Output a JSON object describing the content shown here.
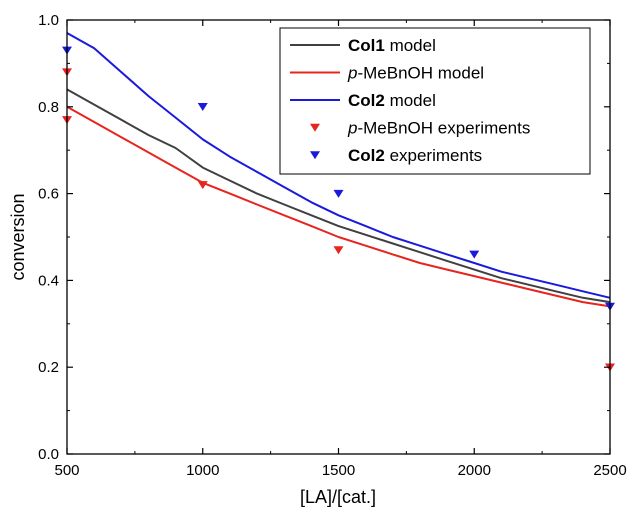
{
  "chart_data": {
    "type": "line",
    "xlabel": "[LA]/[cat.]",
    "ylabel": "conversion",
    "xlim": [
      500,
      2500
    ],
    "ylim": [
      0.0,
      1.0
    ],
    "xticks": [
      500,
      1000,
      1500,
      2000,
      2500
    ],
    "yticks": [
      "0.0",
      "0.2",
      "0.4",
      "0.6",
      "0.8",
      "1.0"
    ],
    "grid": false,
    "legend_position": "top-right",
    "series": [
      {
        "name_bold": "Col1",
        "name_italic": "",
        "name_rest": " model",
        "kind": "line",
        "color": "#404040",
        "x": [
          500,
          600,
          700,
          800,
          900,
          1000,
          1100,
          1200,
          1300,
          1400,
          1500,
          1600,
          1700,
          1800,
          1900,
          2000,
          2100,
          2200,
          2300,
          2400,
          2500
        ],
        "y": [
          0.84,
          0.805,
          0.77,
          0.735,
          0.705,
          0.66,
          0.63,
          0.6,
          0.575,
          0.55,
          0.525,
          0.505,
          0.485,
          0.465,
          0.445,
          0.425,
          0.405,
          0.39,
          0.375,
          0.36,
          0.35
        ]
      },
      {
        "name_bold": "",
        "name_italic": "p",
        "name_rest": "-MeBnOH model",
        "kind": "line",
        "color": "#e8241e",
        "x": [
          500,
          600,
          700,
          800,
          900,
          1000,
          1100,
          1200,
          1300,
          1400,
          1500,
          1600,
          1700,
          1800,
          1900,
          2000,
          2100,
          2200,
          2300,
          2400,
          2500
        ],
        "y": [
          0.8,
          0.765,
          0.73,
          0.695,
          0.66,
          0.625,
          0.6,
          0.575,
          0.55,
          0.525,
          0.5,
          0.48,
          0.46,
          0.44,
          0.425,
          0.41,
          0.395,
          0.38,
          0.365,
          0.35,
          0.34
        ]
      },
      {
        "name_bold": "Col2",
        "name_italic": "",
        "name_rest": " model",
        "kind": "line",
        "color": "#1a1adc",
        "x": [
          500,
          600,
          700,
          800,
          900,
          1000,
          1100,
          1200,
          1300,
          1400,
          1500,
          1600,
          1700,
          1800,
          1900,
          2000,
          2100,
          2200,
          2300,
          2400,
          2500
        ],
        "y": [
          0.97,
          0.935,
          0.88,
          0.825,
          0.775,
          0.725,
          0.685,
          0.65,
          0.615,
          0.58,
          0.55,
          0.525,
          0.5,
          0.48,
          0.46,
          0.44,
          0.42,
          0.405,
          0.39,
          0.375,
          0.36
        ]
      },
      {
        "name_bold": "",
        "name_italic": "p",
        "name_rest": "-MeBnOH experiments",
        "kind": "scatter",
        "marker": "triangle-down",
        "color": "#e8241e",
        "x": [
          500,
          500,
          1000,
          1500,
          2500
        ],
        "y": [
          0.88,
          0.77,
          0.62,
          0.47,
          0.2
        ]
      },
      {
        "name_bold": "Col2",
        "name_italic": "",
        "name_rest": " experiments",
        "kind": "scatter",
        "marker": "triangle-down",
        "color": "#1a1adc",
        "x": [
          500,
          1000,
          1500,
          2000,
          2500
        ],
        "y": [
          0.93,
          0.8,
          0.6,
          0.46,
          0.34
        ]
      }
    ]
  }
}
